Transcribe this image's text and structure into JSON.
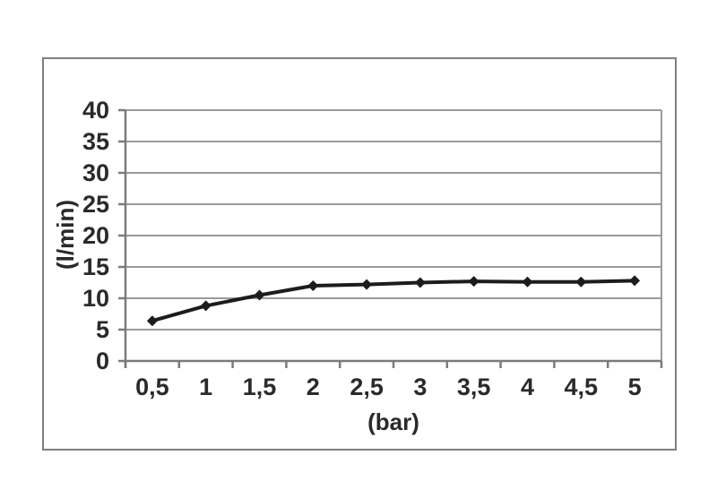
{
  "chart_data": {
    "type": "line",
    "title": "",
    "xlabel": "(bar)",
    "ylabel": "(l/min)",
    "x": [
      0.5,
      1,
      1.5,
      2,
      2.5,
      3,
      3.5,
      4,
      4.5,
      5
    ],
    "x_tick_labels": [
      "0,5",
      "1",
      "1,5",
      "2",
      "2,5",
      "3",
      "3,5",
      "4",
      "4,5",
      "5"
    ],
    "values": [
      6.4,
      8.8,
      10.5,
      12.0,
      12.2,
      12.5,
      12.7,
      12.6,
      12.6,
      12.8
    ],
    "y_ticks": [
      0,
      5,
      10,
      15,
      20,
      25,
      30,
      35,
      40
    ],
    "ylim": [
      0,
      40
    ],
    "grid": "horizontal",
    "legend": "none",
    "marker": "diamond",
    "colors": {
      "line": "#1c1c1c",
      "marker": "#1c1c1c",
      "grid": "#9a9a9a",
      "axis": "#7b7b7b",
      "frame_border": "#7e7e7e",
      "text": "#2a2a2a",
      "background": "#ffffff"
    }
  }
}
